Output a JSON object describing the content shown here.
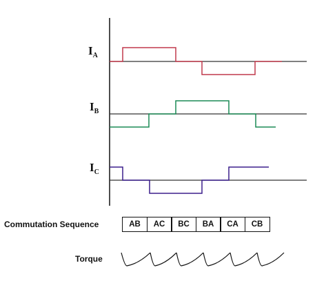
{
  "signals": [
    {
      "id": "ia",
      "label_main": "I",
      "label_sub": "A",
      "color": "#c0394b"
    },
    {
      "id": "ib",
      "label_main": "I",
      "label_sub": "B",
      "color": "#1a8a55"
    },
    {
      "id": "ic",
      "label_main": "I",
      "label_sub": "C",
      "color": "#3b1e8c"
    }
  ],
  "commutation": {
    "label": "Commutation Sequence",
    "steps": [
      "AB",
      "AC",
      "BC",
      "BA",
      "CA",
      "CB"
    ]
  },
  "torque": {
    "label": "Torque"
  },
  "colors": {
    "axis": "#111111",
    "baseline": "#111111"
  }
}
